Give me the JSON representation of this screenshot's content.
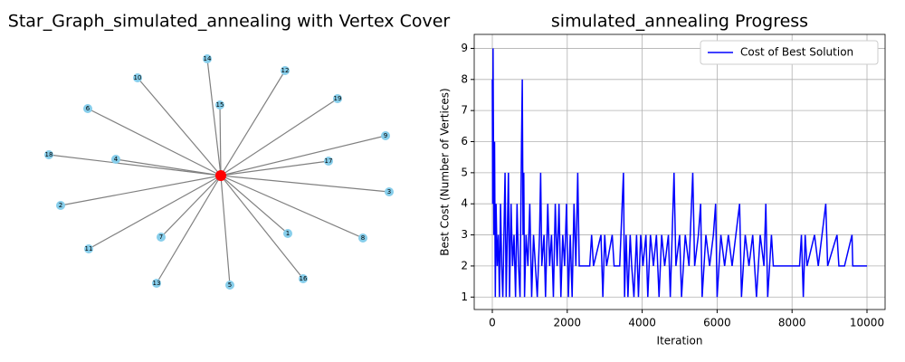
{
  "graph": {
    "title": "Star_Graph_simulated_annealing with Vertex Cover",
    "nodes": [
      "1",
      "2",
      "3",
      "4",
      "5",
      "6",
      "7",
      "8",
      "9",
      "10",
      "11",
      "12",
      "13",
      "14",
      "15",
      "16",
      "17",
      "18",
      "19"
    ]
  },
  "chart_data": {
    "type": "line",
    "title": "simulated_annealing Progress",
    "x_label": "Iteration",
    "y_label": "Best Cost (Number of Vertices)",
    "x": [
      0,
      10,
      20,
      40,
      60,
      80,
      100,
      130,
      160,
      190,
      220,
      250,
      280,
      310,
      340,
      370,
      400,
      430,
      460,
      500,
      540,
      580,
      620,
      660,
      700,
      740,
      780,
      800,
      820,
      840,
      860,
      900,
      950,
      1000,
      1050,
      1100,
      1150,
      1200,
      1260,
      1290,
      1320,
      1380,
      1420,
      1480,
      1530,
      1580,
      1630,
      1680,
      1730,
      1780,
      1830,
      1880,
      1930,
      1980,
      2030,
      2080,
      2130,
      2180,
      2230,
      2280,
      2320,
      2600,
      2650,
      2700,
      2900,
      2950,
      3000,
      3050,
      3200,
      3250,
      3400,
      3500,
      3530,
      3570,
      3620,
      3680,
      3720,
      3780,
      3850,
      3900,
      3960,
      4020,
      4100,
      4150,
      4220,
      4300,
      4380,
      4450,
      4520,
      4600,
      4700,
      4750,
      4850,
      4900,
      5000,
      5050,
      5150,
      5250,
      5350,
      5400,
      5500,
      5560,
      5600,
      5700,
      5800,
      5900,
      5960,
      6000,
      6100,
      6200,
      6300,
      6400,
      6500,
      6600,
      6650,
      6750,
      6850,
      6950,
      7050,
      7150,
      7250,
      7300,
      7350,
      7450,
      7500,
      8200,
      8250,
      8300,
      8350,
      8400,
      8600,
      8700,
      8800,
      8900,
      8950,
      9200,
      9250,
      9400,
      9600,
      9620,
      10000
    ],
    "series": [
      {
        "name": "Cost of Best Solution",
        "color": "#0000ff",
        "values": [
          8,
          4,
          9,
          3,
          6,
          1,
          4,
          2,
          3,
          1,
          4,
          2,
          1,
          3,
          5,
          1,
          3,
          5,
          1,
          4,
          2,
          3,
          1,
          4,
          2,
          1,
          6,
          8,
          3,
          5,
          1,
          3,
          2,
          4,
          1,
          3,
          2,
          1,
          3,
          5,
          2,
          3,
          1,
          4,
          2,
          3,
          1,
          4,
          2,
          4,
          1,
          3,
          2,
          4,
          1,
          3,
          1,
          4,
          2,
          5,
          2,
          2,
          3,
          2,
          3,
          1,
          3,
          2,
          3,
          2,
          2,
          5,
          1,
          3,
          1,
          3,
          2,
          1,
          3,
          1,
          3,
          2,
          3,
          1,
          3,
          2,
          3,
          1,
          3,
          2,
          3,
          1,
          5,
          2,
          3,
          1,
          3,
          2,
          5,
          2,
          3,
          4,
          1,
          3,
          2,
          3,
          4,
          1,
          3,
          2,
          3,
          2,
          3,
          4,
          1,
          3,
          2,
          3,
          1,
          3,
          2,
          4,
          1,
          3,
          2,
          2,
          3,
          1,
          3,
          2,
          3,
          2,
          3,
          4,
          2,
          3,
          2,
          2,
          3,
          2,
          2
        ]
      }
    ],
    "xlim": [
      -483,
      10483
    ],
    "ylim": [
      0.6,
      9.45
    ],
    "xticks": [
      0,
      2000,
      4000,
      6000,
      8000,
      10000
    ],
    "yticks": [
      1,
      2,
      3,
      4,
      5,
      6,
      7,
      8,
      9
    ],
    "grid": true,
    "legend": "upper right"
  }
}
